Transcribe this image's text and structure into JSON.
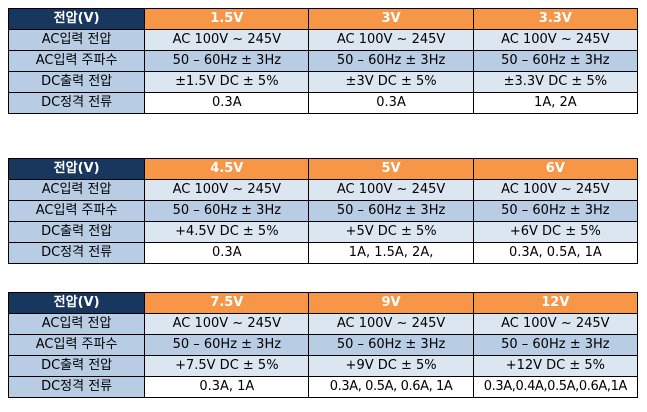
{
  "header_label": "전압(V)",
  "row_labels": {
    "ac_input_voltage": "AC입력 전압",
    "ac_input_frequency": "AC입력 주파수",
    "dc_output_voltage": "DC출력 전압",
    "dc_rated_current": "DC정격 전류"
  },
  "tables": [
    {
      "voltages": [
        "1.5V",
        "3V",
        "3.3V"
      ],
      "ac_input_voltage": [
        "AC 100V ~ 245V",
        "AC 100V ~ 245V",
        "AC 100V ~ 245V"
      ],
      "ac_input_frequency": [
        "50 – 60Hz ± 3Hz",
        "50 – 60Hz ± 3Hz",
        "50 – 60Hz ± 3Hz"
      ],
      "dc_output_voltage": [
        "±1.5V DC ± 5%",
        "±3V DC ± 5%",
        "±3.3V DC ± 5%"
      ],
      "dc_rated_current": [
        "0.3A",
        "0.3A",
        "1A, 2A"
      ]
    },
    {
      "voltages": [
        "4.5V",
        "5V",
        "6V"
      ],
      "ac_input_voltage": [
        "AC 100V ~ 245V",
        "AC 100V ~ 245V",
        "AC 100V ~ 245V"
      ],
      "ac_input_frequency": [
        "50 – 60Hz ± 3Hz",
        "50 – 60Hz ± 3Hz",
        "50 – 60Hz ± 3Hz"
      ],
      "dc_output_voltage": [
        "+4.5V DC ± 5%",
        "+5V DC ± 5%",
        "+6V DC ± 5%"
      ],
      "dc_rated_current": [
        "0.3A",
        "1A, 1.5A, 2A,",
        "0.3A, 0.5A, 1A"
      ]
    },
    {
      "voltages": [
        "7.5V",
        "9V",
        "12V"
      ],
      "ac_input_voltage": [
        "AC 100V ~ 245V",
        "AC 100V ~ 245V",
        "AC 100V ~ 245V"
      ],
      "ac_input_frequency": [
        "50 – 60Hz ± 3Hz",
        "50 – 60Hz ± 3Hz",
        "50 – 60Hz ± 3Hz"
      ],
      "dc_output_voltage": [
        "+7.5V DC ± 5%",
        "+9V DC ± 5%",
        "+12V DC ± 5%"
      ],
      "dc_rated_current": [
        "0.3A, 1A",
        "0.3A, 0.5A, 0.6A, 1A",
        "0.3A,0.4A,0.5A,0.6A,1A"
      ]
    }
  ],
  "colors": {
    "header_label_bg": "#17375e",
    "header_voltage_bg": "#f79646",
    "row_label_bg": "#b8cce4",
    "row_alt_bg": "#dce6f1"
  }
}
